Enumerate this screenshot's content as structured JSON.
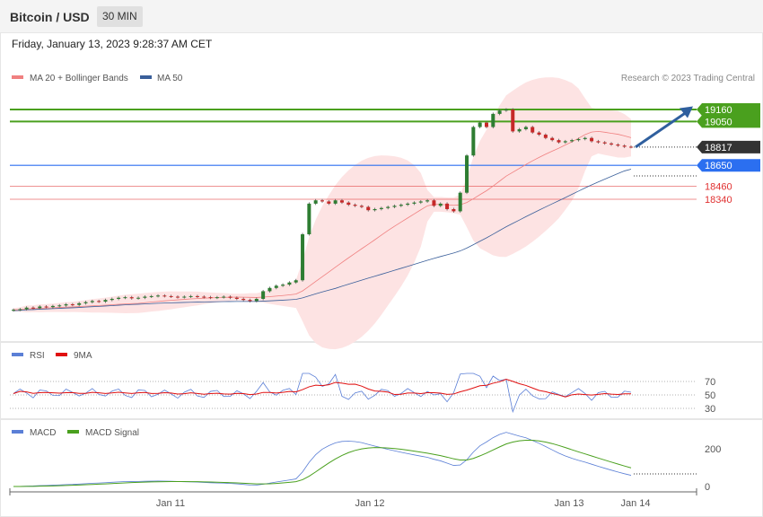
{
  "header": {
    "title": "Bitcoin / USD",
    "interval": "30 MIN",
    "timestamp": "Friday, January 13, 2023 9:28:37 AM CET"
  },
  "legend": {
    "price": [
      {
        "label": "MA 20 + Bollinger Bands",
        "color": "#f08080"
      },
      {
        "label": "MA 50",
        "color": "#3a5f9a"
      }
    ],
    "rsi": [
      {
        "label": "RSI",
        "color": "#5b7fd6"
      },
      {
        "label": "9MA",
        "color": "#e01010"
      }
    ],
    "macd": [
      {
        "label": "MACD",
        "color": "#5b7fd6"
      },
      {
        "label": "MACD Signal",
        "color": "#4aa01e"
      }
    ]
  },
  "credit": "Research © 2023 Trading Central",
  "colors": {
    "resistance": "#4aa01e",
    "pivot": "#2b6ff0",
    "support": "#e03030",
    "last": "#333333",
    "candle_up": "#2e7d32",
    "candle_down": "#c62828",
    "band_fill": "#fde3e3",
    "arrow": "#2f5f9e"
  },
  "chart_data": {
    "type": "candlestick",
    "x_ticks": [
      "Jan 11",
      "Jan 12",
      "Jan 13",
      "Jan 14"
    ],
    "levels": {
      "resistance": [
        19160,
        19050
      ],
      "last": 18817,
      "pivot": 18650,
      "support": [
        18460,
        18340
      ]
    },
    "rsi_levels": [
      70,
      50,
      30
    ],
    "macd_levels": [
      200,
      0
    ],
    "price_series_close": [
      17330,
      17335,
      17350,
      17345,
      17360,
      17355,
      17365,
      17370,
      17380,
      17375,
      17390,
      17400,
      17410,
      17405,
      17420,
      17430,
      17440,
      17445,
      17435,
      17440,
      17450,
      17455,
      17460,
      17455,
      17450,
      17445,
      17450,
      17455,
      17450,
      17445,
      17440,
      17445,
      17450,
      17440,
      17430,
      17420,
      17410,
      17430,
      17500,
      17530,
      17550,
      17560,
      17580,
      17600,
      18020,
      18300,
      18330,
      18320,
      18300,
      18330,
      18310,
      18290,
      18280,
      18270,
      18240,
      18250,
      18260,
      18270,
      18280,
      18290,
      18300,
      18310,
      18320,
      18330,
      18280,
      18300,
      18250,
      18230,
      18400,
      18740,
      19000,
      19040,
      19000,
      19120,
      19150,
      19160,
      18960,
      18980,
      19000,
      18950,
      18930,
      18900,
      18880,
      18860,
      18870,
      18880,
      18890,
      18900,
      18870,
      18860,
      18850,
      18840,
      18830,
      18820,
      18817
    ],
    "trend_arrow": {
      "from": 18817,
      "to": 19180
    }
  }
}
